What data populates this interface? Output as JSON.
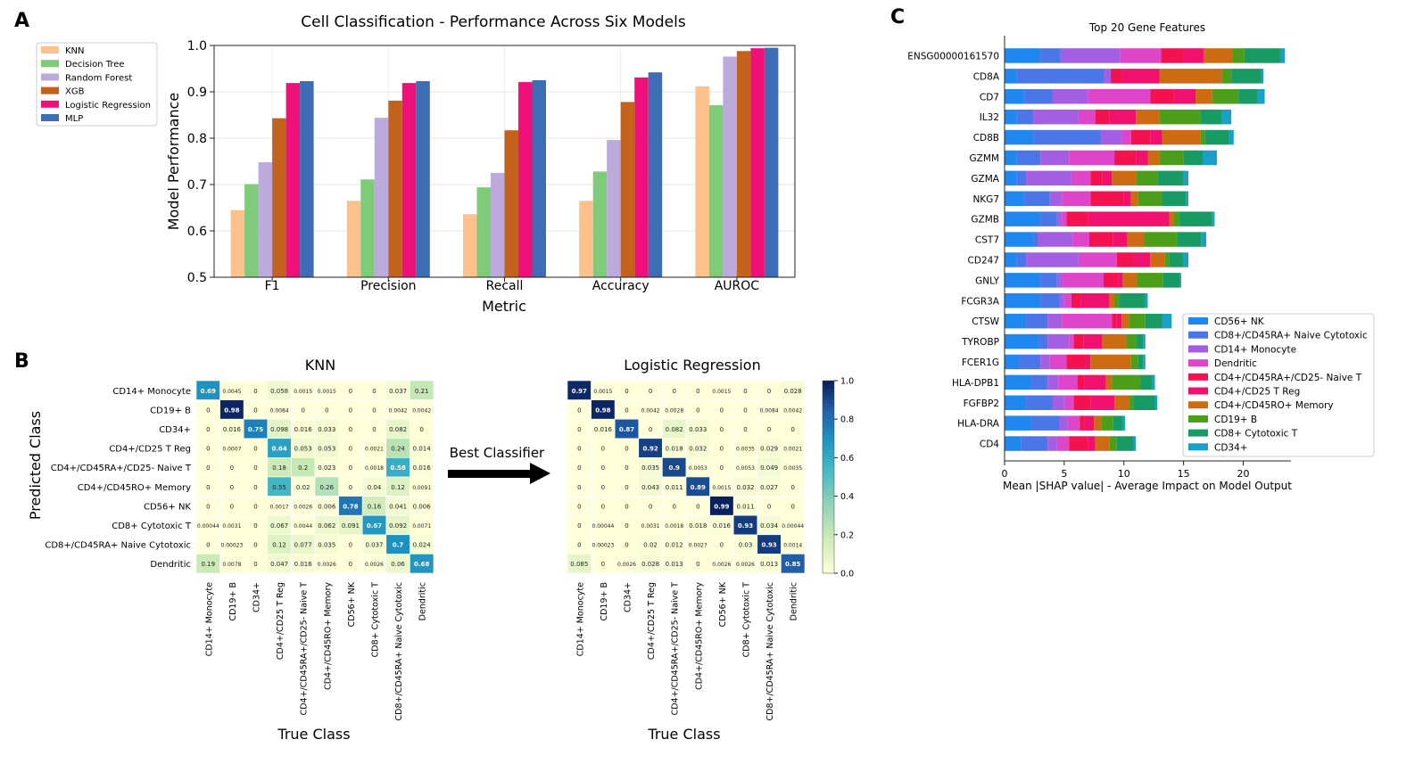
{
  "panels": {
    "a": "A",
    "b": "B",
    "c": "C"
  },
  "colors": {
    "knn": "#fdc28b",
    "dt": "#7ecb7a",
    "rf": "#bcaadc",
    "xgb": "#c2621c",
    "lr": "#f0107a",
    "mlp": "#3c6db5",
    "cm_low": "#ffffd9",
    "cm_high": "#081d58"
  },
  "chart_data": [
    {
      "id": "performance",
      "type": "bar",
      "title": "Cell Classification - Performance Across Six Models",
      "xlabel": "Metric",
      "ylabel": "Model Performance",
      "ylim": [
        0.5,
        1.0
      ],
      "yticks": [
        "0.5",
        "0.6",
        "0.7",
        "0.8",
        "0.9",
        "1.0"
      ],
      "grid": true,
      "legend": "top-left",
      "categories": [
        "F1",
        "Precision",
        "Recall",
        "Accuracy",
        "AUROC"
      ],
      "series": [
        {
          "name": "KNN",
          "color": "#fdc28b",
          "values": [
            0.645,
            0.665,
            0.636,
            0.665,
            0.912
          ]
        },
        {
          "name": "Decision Tree",
          "color": "#7ecb7a",
          "values": [
            0.701,
            0.711,
            0.694,
            0.728,
            0.871
          ]
        },
        {
          "name": "Random Forest",
          "color": "#bcaadc",
          "values": [
            0.748,
            0.844,
            0.725,
            0.796,
            0.976
          ]
        },
        {
          "name": "XGB",
          "color": "#c2621c",
          "values": [
            0.843,
            0.881,
            0.817,
            0.878,
            0.988
          ]
        },
        {
          "name": "Logistic Regression",
          "color": "#f0107a",
          "values": [
            0.919,
            0.919,
            0.921,
            0.931,
            0.994
          ]
        },
        {
          "name": "MLP",
          "color": "#3c6db5",
          "values": [
            0.923,
            0.923,
            0.925,
            0.942,
            0.995
          ]
        }
      ]
    },
    {
      "id": "knn-confusion",
      "type": "heatmap",
      "title": "KNN",
      "xlabel": "True Class",
      "ylabel": "Predicted Class",
      "rows": [
        "CD14+ Monocyte",
        "CD19+ B",
        "CD34+",
        "CD4+/CD25 T Reg",
        "CD4+/CD45RA+/CD25- Naive T",
        "CD4+/CD45RO+ Memory",
        "CD56+ NK",
        "CD8+ Cytotoxic T",
        "CD8+/CD45RA+ Naive Cytotoxic",
        "Dendritic"
      ],
      "cols": [
        "CD14+ Monocyte",
        "CD19+ B",
        "CD34+",
        "CD4+/CD25 T Reg",
        "CD4+/CD45RA+/CD25- Naive T",
        "CD4+/CD45RO+ Memory",
        "CD56+ NK",
        "CD8+ Cytotoxic T",
        "CD8+/CD45RA+ Naive Cytotoxic",
        "Dendritic"
      ],
      "labels": [
        [
          "0.69",
          "0.0045",
          "0",
          "0.058",
          "0.0015",
          "0.0015",
          "0",
          "0",
          "0.037",
          "0.21"
        ],
        [
          "0",
          "0.98",
          "0",
          "0.0084",
          "0",
          "0",
          "0",
          "0",
          "0.0042",
          "0.0042"
        ],
        [
          "0",
          "0.016",
          "0.75",
          "0.098",
          "0.016",
          "0.033",
          "0",
          "0",
          "0.082",
          "0"
        ],
        [
          "0",
          "0.0007",
          "0",
          "0.64",
          "0.053",
          "0.053",
          "0",
          "0.0021",
          "0.24",
          "0.014"
        ],
        [
          "0",
          "0",
          "0",
          "0.18",
          "0.2",
          "0.023",
          "0",
          "0.0018",
          "0.58",
          "0.016"
        ],
        [
          "0",
          "0",
          "0",
          "0.55",
          "0.02",
          "0.26",
          "0",
          "0.04",
          "0.12",
          "0.0091"
        ],
        [
          "0",
          "0",
          "0",
          "0.0017",
          "0.0026",
          "0.006",
          "0.78",
          "0.16",
          "0.041",
          "0.006"
        ],
        [
          "0.00044",
          "0.0031",
          "0",
          "0.067",
          "0.0044",
          "0.062",
          "0.091",
          "0.67",
          "0.092",
          "0.0071"
        ],
        [
          "0",
          "0.00023",
          "0",
          "0.12",
          "0.077",
          "0.035",
          "0",
          "0.037",
          "0.7",
          "0.024"
        ],
        [
          "0.19",
          "0.0078",
          "0",
          "0.047",
          "0.016",
          "0.0026",
          "0",
          "0.0026",
          "0.06",
          "0.68"
        ]
      ]
    },
    {
      "id": "lr-confusion",
      "type": "heatmap",
      "title": "Logistic Regression",
      "xlabel": "True Class",
      "cols": [
        "CD14+ Monocyte",
        "CD19+ B",
        "CD34+",
        "CD4+/CD25 T Reg",
        "CD4+/CD45RA+/CD25- Naive T",
        "CD4+/CD45RO+ Memory",
        "CD56+ NK",
        "CD8+ Cytotoxic T",
        "CD8+/CD45RA+ Naive Cytotoxic",
        "Dendritic"
      ],
      "colorbar": {
        "range": [
          0.0,
          1.0
        ],
        "ticks": [
          "0.0",
          "0.2",
          "0.4",
          "0.6",
          "0.8",
          "1.0"
        ]
      },
      "labels": [
        [
          "0.97",
          "0.0015",
          "0",
          "0",
          "0",
          "0",
          "0.0015",
          "0",
          "0",
          "0.028"
        ],
        [
          "0",
          "0.98",
          "0",
          "0.0042",
          "0.0028",
          "0",
          "0",
          "0",
          "0.0084",
          "0.0042"
        ],
        [
          "0",
          "0.016",
          "0.87",
          "0",
          "0.082",
          "0.033",
          "0",
          "0",
          "0",
          "0"
        ],
        [
          "0",
          "0",
          "0",
          "0.92",
          "0.018",
          "0.032",
          "0",
          "0.0035",
          "0.029",
          "0.0021"
        ],
        [
          "0",
          "0",
          "0",
          "0.035",
          "0.9",
          "0.0053",
          "0",
          "0.0053",
          "0.049",
          "0.0035"
        ],
        [
          "0",
          "0",
          "0",
          "0.043",
          "0.011",
          "0.89",
          "0.0015",
          "0.032",
          "0.027",
          "0"
        ],
        [
          "0",
          "0",
          "0",
          "0",
          "0",
          "0",
          "0.99",
          "0.011",
          "0",
          "0"
        ],
        [
          "0",
          "0.00044",
          "0",
          "0.0031",
          "0.0018",
          "0.018",
          "0.016",
          "0.93",
          "0.034",
          "0.00044"
        ],
        [
          "0",
          "0.00023",
          "0",
          "0.02",
          "0.012",
          "0.0027",
          "0",
          "0.03",
          "0.93",
          "0.0014"
        ],
        [
          "0.085",
          "0",
          "0.0026",
          "0.028",
          "0.013",
          "0",
          "0.0026",
          "0.0026",
          "0.013",
          "0.85"
        ]
      ]
    },
    {
      "id": "shap-features",
      "type": "bar",
      "orientation": "horizontal",
      "stacked": true,
      "title": "Top 20 Gene Features",
      "xlabel": "Mean |SHAP value| - Average Impact on Model Output",
      "xlim": [
        0,
        24
      ],
      "xticks": [
        "0",
        "5",
        "10",
        "15",
        "20"
      ],
      "legend": "right",
      "categories": [
        "ENSG00000161570",
        "CD8A",
        "CD7",
        "IL32",
        "CD8B",
        "GZMM",
        "GZMA",
        "NKG7",
        "GZMB",
        "CST7",
        "CD247",
        "GNLY",
        "FCGR3A",
        "CTSW",
        "TYROBP",
        "FCER1G",
        "HLA-DPB1",
        "FGFBP2",
        "HLA-DRA",
        "CD4"
      ],
      "stack_order": [
        "CD56+ NK",
        "CD8+/CD45RA+ Naive Cytotoxic",
        "CD14+ Monocyte",
        "Dendritic",
        "CD4+/CD45RA+/CD25- Naive T",
        "CD4+/CD25 T Reg",
        "CD4+/CD45RO+ Memory",
        "CD19+ B",
        "CD8+ Cytotoxic T",
        "CD34+"
      ],
      "series": [
        {
          "name": "CD56+ NK",
          "color": "#1e88f0",
          "values": [
            3.0,
            1.0,
            1.6,
            1.0,
            2.4,
            1.0,
            1.0,
            1.6,
            3.0,
            2.4,
            1.0,
            3.0,
            3.0,
            1.8,
            2.8,
            1.2,
            2.2,
            1.8,
            2.2,
            1.4
          ]
        },
        {
          "name": "CD8+/CD45RA+ Naive Cytotoxic",
          "color": "#4a76e8",
          "values": [
            1.7,
            7.3,
            2.4,
            1.4,
            5.6,
            2.0,
            0.8,
            2.2,
            1.4,
            0.4,
            0.8,
            1.4,
            1.6,
            1.8,
            0.8,
            1.8,
            1.4,
            2.2,
            2.4,
            2.2
          ]
        },
        {
          "name": "CD14+ Monocyte",
          "color": "#a35ee3",
          "values": [
            5.0,
            0.6,
            3.0,
            3.8,
            1.8,
            2.4,
            3.8,
            1.0,
            0.4,
            2.9,
            4.4,
            0.5,
            0.4,
            1.2,
            1.8,
            0.8,
            0.9,
            1.0,
            0.7,
            0.8
          ]
        },
        {
          "name": "Dendritic",
          "color": "#df45c8",
          "values": [
            3.4,
            0.0,
            5.2,
            1.4,
            0.8,
            3.8,
            1.6,
            2.4,
            0.4,
            1.4,
            3.2,
            3.4,
            0.6,
            4.2,
            0.4,
            1.4,
            1.6,
            0.8,
            1.0,
            1.0
          ]
        },
        {
          "name": "CD4+/CD45RA+/CD25- Naive T",
          "color": "#f4114f",
          "values": [
            2.0,
            0.9,
            2.0,
            1.2,
            1.6,
            1.8,
            1.0,
            2.8,
            1.8,
            2.0,
            1.4,
            1.2,
            0.8,
            0.4,
            0.8,
            1.6,
            0.6,
            1.4,
            0.4,
            1.6
          ]
        },
        {
          "name": "CD4+/CD25 T Reg",
          "color": "#f0106e",
          "values": [
            1.6,
            3.2,
            1.8,
            2.2,
            1.0,
            1.0,
            0.8,
            0.6,
            6.8,
            1.2,
            1.4,
            0.4,
            2.4,
            0.4,
            1.6,
            0.4,
            1.8,
            2.0,
            0.8,
            0.6
          ]
        },
        {
          "name": "CD4+/CD45RO+ Memory",
          "color": "#cc6b12",
          "values": [
            2.4,
            5.2,
            1.4,
            2.0,
            3.2,
            1.0,
            2.0,
            0.6,
            0.4,
            1.4,
            1.2,
            1.2,
            0.4,
            0.6,
            2.0,
            3.4,
            0.5,
            1.2,
            0.6,
            1.2
          ]
        },
        {
          "name": "CD19+ B",
          "color": "#4c9e1a",
          "values": [
            1.0,
            0.8,
            2.2,
            3.4,
            0.4,
            2.0,
            1.8,
            2.0,
            0.4,
            2.8,
            0.4,
            2.2,
            0.4,
            1.4,
            0.8,
            0.6,
            2.4,
            0.4,
            1.0,
            0.6
          ]
        },
        {
          "name": "CD8+ Cytotoxic T",
          "color": "#189a64",
          "values": [
            3.0,
            2.5,
            1.6,
            1.8,
            2.0,
            1.6,
            2.2,
            2.0,
            2.8,
            2.0,
            1.2,
            1.4,
            2.2,
            1.4,
            0.6,
            0.4,
            1.0,
            1.8,
            0.8,
            1.4
          ]
        },
        {
          "name": "CD34+",
          "color": "#18a0c8",
          "values": [
            0.4,
            0.2,
            0.6,
            0.8,
            0.4,
            1.2,
            0.4,
            0.2,
            0.2,
            0.4,
            0.4,
            0.1,
            0.2,
            0.8,
            0.2,
            0.2,
            0.2,
            0.2,
            0.2,
            0.2
          ]
        }
      ]
    }
  ],
  "annotation": {
    "arrow_label": "Best Classifier"
  }
}
